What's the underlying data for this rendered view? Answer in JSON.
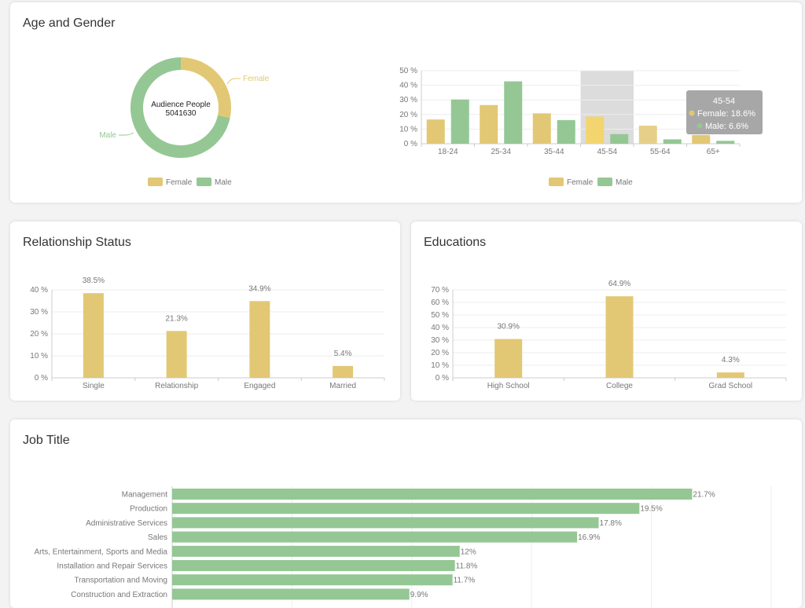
{
  "colors": {
    "female": "#e2c874",
    "male": "#94c794",
    "female_highlight": "#f2d56e",
    "grid": "#eeeeee",
    "axis": "#cccccc",
    "text": "#777777",
    "tooltip_bg": "#a7a7a7",
    "hover_band": "#dcdcdc"
  },
  "age_gender": {
    "title": "Age and Gender",
    "donut": {
      "center_label": "Audience People",
      "center_value": "5041630",
      "female_label": "Female",
      "male_label": "Male"
    },
    "legend": [
      "Female",
      "Male"
    ]
  },
  "relationship": {
    "title": "Relationship Status"
  },
  "education": {
    "title": "Educations"
  },
  "job": {
    "title": "Job Title"
  },
  "chart_data": [
    {
      "id": "gender_donut",
      "type": "pie",
      "categories": [
        "Female",
        "Male"
      ],
      "values": [
        28.3,
        71.7
      ],
      "legend": [
        "Female",
        "Male"
      ]
    },
    {
      "id": "age_bars",
      "type": "bar",
      "categories": [
        "18-24",
        "25-34",
        "35-44",
        "45-54",
        "55-64",
        "65+"
      ],
      "series": [
        {
          "name": "Female",
          "values": [
            16.6,
            26.5,
            20.8,
            18.6,
            12.4,
            6.0
          ]
        },
        {
          "name": "Male",
          "values": [
            30.3,
            42.7,
            16.2,
            6.6,
            3.0,
            2.0
          ]
        }
      ],
      "ylim": [
        0,
        50
      ],
      "yticks": [
        "0 %",
        "10 %",
        "20 %",
        "30 %",
        "40 %",
        "50 %"
      ],
      "legend": [
        "Female",
        "Male"
      ],
      "highlight_category": "45-54",
      "tooltip": {
        "title": "45-54",
        "female": "Female:  18.6%",
        "male": "Male:  6.6%"
      }
    },
    {
      "id": "relationship_bars",
      "type": "bar",
      "categories": [
        "Single",
        "Relationship",
        "Engaged",
        "Married"
      ],
      "values": [
        38.5,
        21.3,
        34.9,
        5.4
      ],
      "labels": [
        "38.5%",
        "21.3%",
        "34.9%",
        "5.4%"
      ],
      "ylim": [
        0,
        40
      ],
      "yticks": [
        "0 %",
        "10 %",
        "20 %",
        "30 %",
        "40 %"
      ]
    },
    {
      "id": "education_bars",
      "type": "bar",
      "categories": [
        "High School",
        "College",
        "Grad School"
      ],
      "values": [
        30.9,
        64.9,
        4.3
      ],
      "labels": [
        "30.9%",
        "64.9%",
        "4.3%"
      ],
      "ylim": [
        0,
        70
      ],
      "yticks": [
        "0 %",
        "10 %",
        "20 %",
        "30 %",
        "40 %",
        "50 %",
        "60 %",
        "70 %"
      ]
    },
    {
      "id": "job_bars",
      "type": "bar",
      "orientation": "horizontal",
      "categories": [
        "Management",
        "Production",
        "Administrative Services",
        "Sales",
        "Arts, Entertainment, Sports and Media",
        "Installation and Repair Services",
        "Transportation and Moving",
        "Construction and Extraction"
      ],
      "values": [
        21.7,
        19.5,
        17.8,
        16.9,
        12,
        11.8,
        11.7,
        9.9
      ],
      "labels": [
        "21.7%",
        "19.5%",
        "17.8%",
        "16.9%",
        "12%",
        "11.8%",
        "11.7%",
        "9.9%"
      ],
      "xlim": [
        0,
        25
      ]
    }
  ]
}
